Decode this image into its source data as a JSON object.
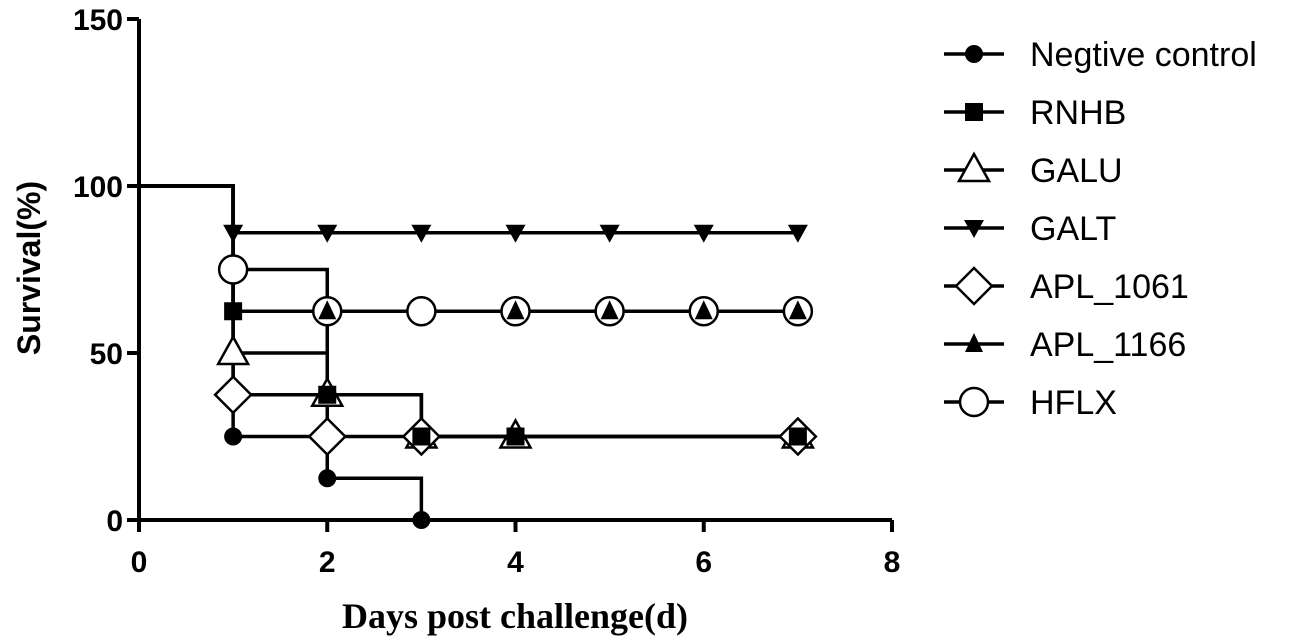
{
  "chart_data": {
    "type": "line",
    "step": true,
    "title": "",
    "xlabel": "Days post challenge(d)",
    "ylabel": "Survival(%)",
    "xlim": [
      0,
      8
    ],
    "ylim": [
      0,
      150
    ],
    "xticks": [
      0,
      2,
      4,
      6,
      8
    ],
    "yticks": [
      0,
      50,
      100,
      150
    ],
    "grid": false,
    "legend_position": "right",
    "series": [
      {
        "name": "Negtive control",
        "marker": "filled-circle",
        "line": [
          [
            0,
            100
          ],
          [
            1,
            100
          ],
          [
            1,
            25
          ],
          [
            2,
            25
          ],
          [
            2,
            12.5
          ],
          [
            3,
            12.5
          ],
          [
            3,
            0
          ]
        ],
        "points": [
          [
            1,
            25
          ],
          [
            2,
            12.5
          ],
          [
            3,
            0
          ]
        ]
      },
      {
        "name": "RNHB",
        "marker": "filled-square",
        "line": [
          [
            0,
            100
          ],
          [
            1,
            100
          ],
          [
            1,
            62.5
          ],
          [
            2,
            62.5
          ],
          [
            2,
            37.5
          ],
          [
            3,
            37.5
          ],
          [
            3,
            25
          ],
          [
            7,
            25
          ]
        ],
        "points": [
          [
            1,
            62.5
          ],
          [
            2,
            37.5
          ],
          [
            3,
            25
          ],
          [
            4,
            25
          ],
          [
            7,
            25
          ]
        ]
      },
      {
        "name": "GALU",
        "marker": "open-triangle",
        "line": [
          [
            0,
            100
          ],
          [
            1,
            100
          ],
          [
            1,
            50
          ],
          [
            2,
            50
          ],
          [
            2,
            37.5
          ],
          [
            3,
            37.5
          ],
          [
            3,
            25
          ],
          [
            7,
            25
          ]
        ],
        "points": [
          [
            1,
            50
          ],
          [
            2,
            37.5
          ],
          [
            3,
            25
          ],
          [
            4,
            25
          ],
          [
            7,
            25
          ]
        ]
      },
      {
        "name": "GALT",
        "marker": "filled-triangle-down",
        "line": [
          [
            0,
            100
          ],
          [
            1,
            100
          ],
          [
            1,
            86
          ],
          [
            7,
            86
          ]
        ],
        "points": [
          [
            1,
            86
          ],
          [
            2,
            86
          ],
          [
            3,
            86
          ],
          [
            4,
            86
          ],
          [
            5,
            86
          ],
          [
            6,
            86
          ],
          [
            7,
            86
          ]
        ]
      },
      {
        "name": "APL_1061",
        "marker": "open-diamond",
        "line": [
          [
            0,
            100
          ],
          [
            1,
            100
          ],
          [
            1,
            37.5
          ],
          [
            2,
            37.5
          ],
          [
            2,
            25
          ],
          [
            7,
            25
          ]
        ],
        "points": [
          [
            1,
            37.5
          ],
          [
            2,
            25
          ],
          [
            3,
            25
          ],
          [
            7,
            25
          ]
        ]
      },
      {
        "name": "APL_1166",
        "marker": "filled-triangle",
        "line": [
          [
            0,
            100
          ],
          [
            1,
            100
          ],
          [
            1,
            62.5
          ],
          [
            7,
            62.5
          ]
        ],
        "points": [
          [
            2,
            62.5
          ],
          [
            4,
            62.5
          ],
          [
            5,
            62.5
          ],
          [
            6,
            62.5
          ],
          [
            7,
            62.5
          ]
        ]
      },
      {
        "name": "HFLX",
        "marker": "open-circle",
        "line": [
          [
            0,
            100
          ],
          [
            1,
            100
          ],
          [
            1,
            75
          ],
          [
            2,
            75
          ],
          [
            2,
            62.5
          ],
          [
            7,
            62.5
          ]
        ],
        "points": [
          [
            1,
            75
          ],
          [
            2,
            62.5
          ],
          [
            3,
            62.5
          ],
          [
            4,
            62.5
          ],
          [
            5,
            62.5
          ],
          [
            6,
            62.5
          ],
          [
            7,
            62.5
          ]
        ]
      }
    ]
  }
}
